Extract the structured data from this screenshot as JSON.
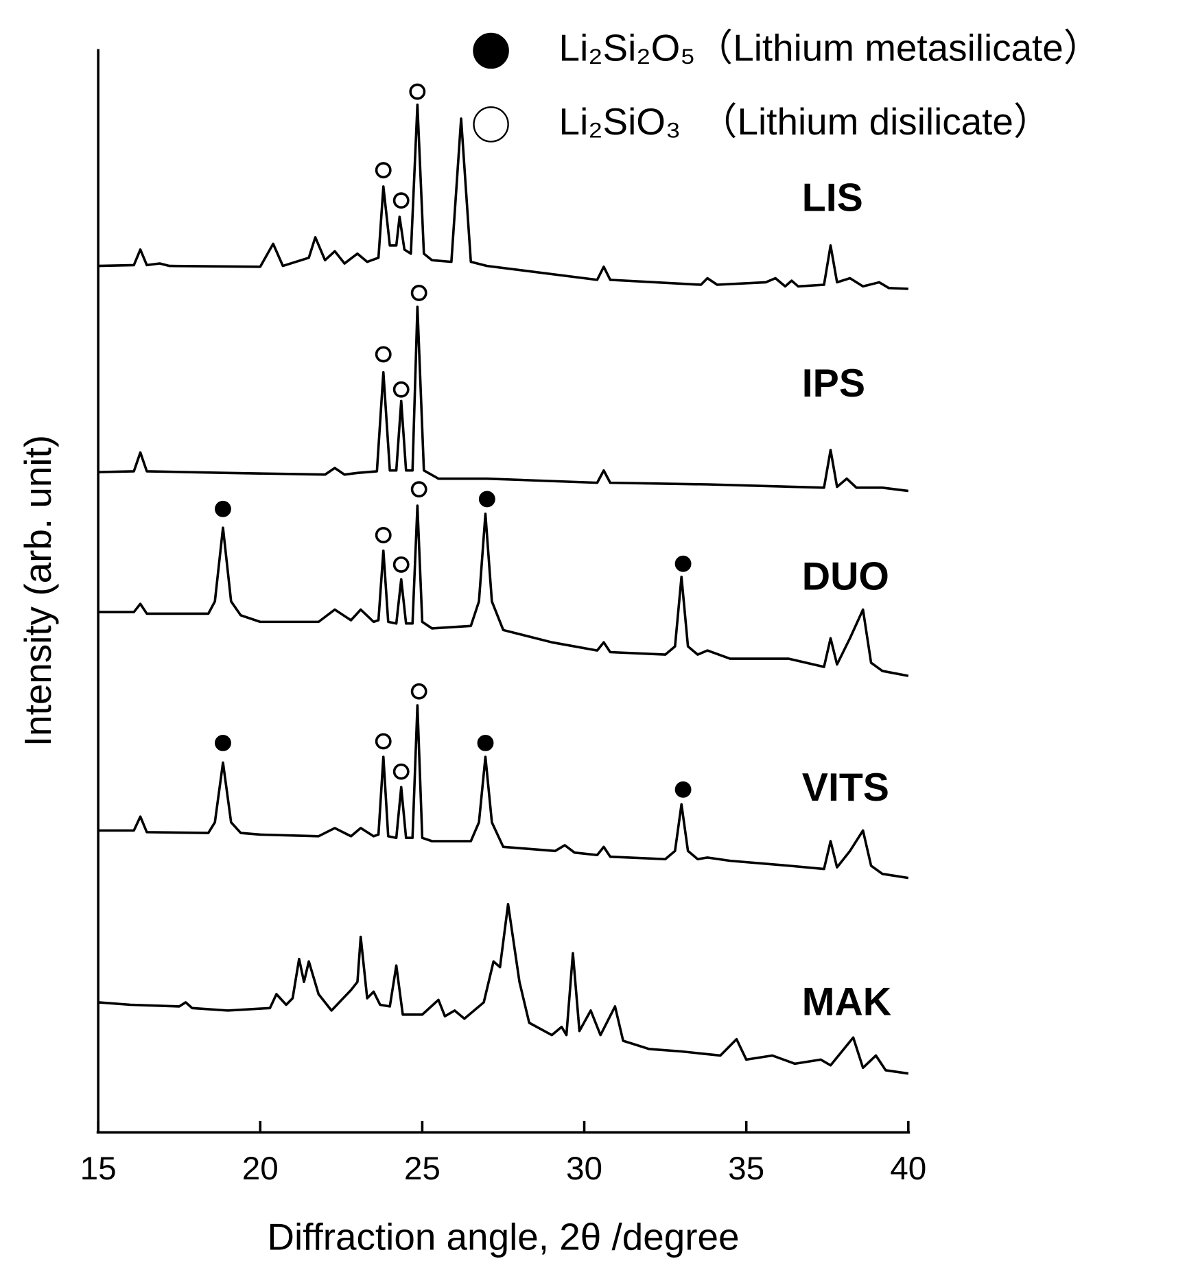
{
  "chart_data": {
    "type": "line",
    "xlabel": "Diffraction angle, 2θ /degree",
    "ylabel": "Intensity (arb. unit)",
    "xlim": [
      15,
      40
    ],
    "xticks": [
      15,
      20,
      25,
      30,
      35,
      40
    ],
    "ylim": [
      0,
      1323
    ],
    "series": [
      {
        "name": "LIS",
        "color": "#000000",
        "x": [
          15,
          16.1,
          16.3,
          16.5,
          16.9,
          17.2,
          20.0,
          20.4,
          20.7,
          21.5,
          21.7,
          22.0,
          22.3,
          22.6,
          23.0,
          23.3,
          23.65,
          23.8,
          24.0,
          24.2,
          24.3,
          24.45,
          24.65,
          24.85,
          25.05,
          25.3,
          25.9,
          26.2,
          26.5,
          27,
          30.4,
          30.6,
          30.8,
          33.6,
          33.8,
          34.1,
          35.6,
          35.9,
          36.2,
          36.4,
          36.6,
          37.4,
          37.6,
          37.8,
          38.2,
          38.6,
          39.1,
          39.4,
          40
        ],
        "values": [
          1058,
          1059,
          1078,
          1059,
          1061,
          1058,
          1057,
          1085,
          1058,
          1068,
          1093,
          1065,
          1076,
          1061,
          1073,
          1063,
          1068,
          1155,
          1083,
          1083,
          1118,
          1078,
          1073,
          1255,
          1073,
          1065,
          1063,
          1238,
          1063,
          1058,
          1041,
          1057,
          1041,
          1035,
          1043,
          1035,
          1038,
          1043,
          1033,
          1040,
          1033,
          1035,
          1083,
          1038,
          1043,
          1033,
          1038,
          1031,
          1030
        ]
      },
      {
        "name": "IPS",
        "color": "#000000",
        "x": [
          15,
          16.1,
          16.3,
          16.5,
          19,
          22.0,
          22.3,
          22.6,
          23.0,
          23.6,
          23.8,
          24.0,
          24.2,
          24.35,
          24.5,
          24.7,
          24.85,
          25.05,
          25.5,
          27,
          30.4,
          30.6,
          30.8,
          33.8,
          37.4,
          37.6,
          37.8,
          38.1,
          38.4,
          39.2,
          40
        ],
        "values": [
          806,
          807,
          830,
          807,
          805,
          803,
          811,
          803,
          805,
          807,
          928,
          808,
          808,
          893,
          808,
          808,
          1008,
          808,
          798,
          798,
          793,
          808,
          793,
          791,
          787,
          833,
          788,
          798,
          787,
          787,
          783
        ]
      },
      {
        "name": "DUO",
        "color": "#000000",
        "x": [
          15,
          16.1,
          16.3,
          16.5,
          18.4,
          18.6,
          18.85,
          19.1,
          19.4,
          20,
          21.8,
          22.3,
          22.8,
          23.1,
          23.5,
          23.65,
          23.8,
          23.95,
          24.2,
          24.35,
          24.5,
          24.7,
          24.85,
          25.0,
          25.3,
          26.5,
          26.75,
          26.95,
          27.15,
          27.5,
          29,
          30.4,
          30.6,
          30.8,
          32.5,
          32.8,
          33.0,
          33.2,
          33.5,
          33.8,
          34.5,
          36.3,
          37.4,
          37.6,
          37.8,
          38.2,
          38.6,
          38.85,
          39.2,
          40
        ],
        "values": [
          635,
          635,
          645,
          633,
          633,
          648,
          738,
          648,
          631,
          623,
          623,
          638,
          625,
          638,
          623,
          625,
          710,
          623,
          621,
          675,
          621,
          621,
          765,
          623,
          615,
          618,
          648,
          755,
          648,
          613,
          598,
          588,
          598,
          586,
          583,
          593,
          678,
          593,
          583,
          588,
          578,
          578,
          568,
          603,
          571,
          603,
          638,
          573,
          563,
          557
        ]
      },
      {
        "name": "VITS",
        "color": "#000000",
        "x": [
          15,
          16.1,
          16.3,
          16.5,
          18.4,
          18.6,
          18.85,
          19.1,
          19.4,
          20,
          21.8,
          22.3,
          22.8,
          23.1,
          23.5,
          23.65,
          23.8,
          23.95,
          24.2,
          24.35,
          24.5,
          24.7,
          24.85,
          25.0,
          25.3,
          26.5,
          26.75,
          26.95,
          27.15,
          27.5,
          29.1,
          29.4,
          29.7,
          30.4,
          30.6,
          30.8,
          32.5,
          32.8,
          33.0,
          33.2,
          33.5,
          33.8,
          34.5,
          36.3,
          37.4,
          37.6,
          37.8,
          38.2,
          38.6,
          38.85,
          39.2,
          40
        ],
        "values": [
          368,
          368,
          385,
          366,
          365,
          378,
          451,
          378,
          365,
          363,
          361,
          371,
          361,
          371,
          361,
          363,
          458,
          361,
          359,
          421,
          359,
          359,
          521,
          359,
          355,
          355,
          378,
          458,
          378,
          348,
          343,
          350,
          341,
          338,
          348,
          336,
          333,
          343,
          400,
          343,
          333,
          335,
          331,
          325,
          321,
          355,
          323,
          343,
          368,
          325,
          315,
          310
        ]
      },
      {
        "name": "MAK",
        "color": "#000000",
        "x": [
          15,
          16,
          17.5,
          17.7,
          17.9,
          19,
          20.3,
          20.5,
          20.8,
          21.0,
          21.2,
          21.35,
          21.5,
          21.8,
          22.2,
          22.8,
          23.0,
          23.1,
          23.3,
          23.5,
          23.7,
          24.0,
          24.2,
          24.4,
          25.0,
          25.5,
          25.7,
          26.0,
          26.3,
          26.9,
          27.2,
          27.4,
          27.65,
          28.0,
          28.3,
          29.0,
          29.3,
          29.45,
          29.65,
          29.85,
          30.2,
          30.5,
          30.95,
          31.2,
          32,
          33,
          34.2,
          34.7,
          35.0,
          35.8,
          36.5,
          37.3,
          37.6,
          38.3,
          38.6,
          39.0,
          39.3,
          40
        ],
        "values": [
          158,
          155,
          153,
          158,
          151,
          148,
          151,
          168,
          155,
          163,
          211,
          183,
          208,
          168,
          148,
          173,
          183,
          238,
          163,
          171,
          155,
          153,
          203,
          143,
          143,
          161,
          141,
          148,
          138,
          158,
          208,
          201,
          278,
          183,
          133,
          118,
          128,
          118,
          218,
          123,
          148,
          118,
          153,
          111,
          101,
          98,
          93,
          113,
          88,
          93,
          83,
          88,
          81,
          115,
          78,
          93,
          75,
          71
        ]
      }
    ],
    "markers": [
      {
        "name": "Li₂Si₂O₅（Lithium metasilicate）",
        "fill": "#000000",
        "x": [
          18.85,
          27.0,
          33.05,
          18.85,
          26.95,
          33.05
        ],
        "values": [
          761,
          773,
          694,
          475,
          475,
          418
        ]
      },
      {
        "name": "Li₂SiO₃　（Lithium disilicate）",
        "fill": "#ffffff",
        "x": [
          23.8,
          24.35,
          24.85,
          23.8,
          24.35,
          24.9,
          23.8,
          24.35,
          24.9,
          23.8,
          24.35,
          24.9
        ],
        "values": [
          1175,
          1138,
          1271,
          950,
          907,
          1025,
          729,
          693,
          785,
          477,
          440,
          538
        ]
      }
    ]
  }
}
